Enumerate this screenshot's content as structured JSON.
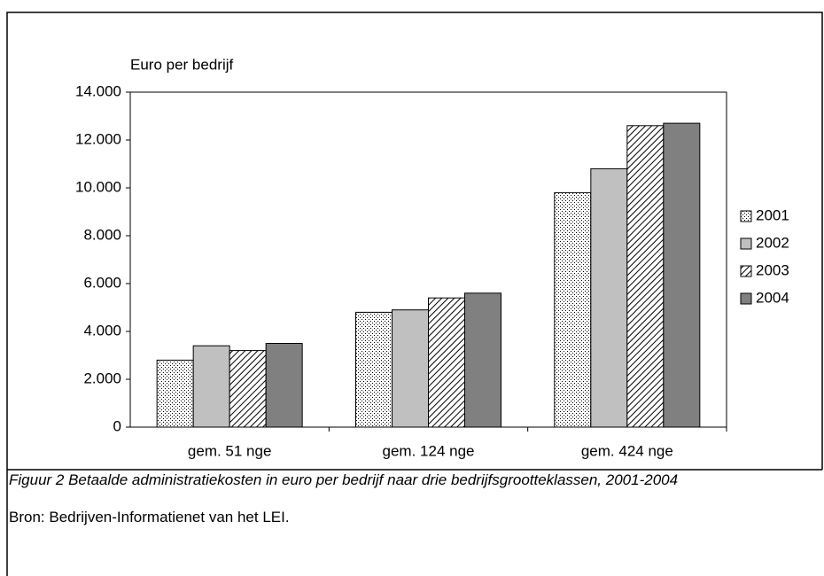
{
  "chart_data": {
    "type": "bar",
    "ylabel": "Euro per bedrijf",
    "categories": [
      "gem. 51 nge",
      "gem. 124 nge",
      "gem. 424 nge"
    ],
    "series": [
      {
        "name": "2001",
        "color": "#ffffff",
        "pattern": "dots",
        "values": [
          2800,
          4800,
          9800
        ]
      },
      {
        "name": "2002",
        "color": "#c0c0c0",
        "pattern": "solid",
        "values": [
          3400,
          4900,
          10800
        ]
      },
      {
        "name": "2003",
        "color": "#ffffff",
        "pattern": "hatch",
        "values": [
          3200,
          5400,
          12600
        ]
      },
      {
        "name": "2004",
        "color": "#808080",
        "pattern": "solid",
        "values": [
          3500,
          5600,
          12700
        ]
      }
    ],
    "ylim": [
      0,
      14000
    ],
    "yticks": [
      0,
      {
        "value": 2000,
        "label": "2.000"
      },
      {
        "value": 4000,
        "label": "4.000"
      },
      {
        "value": 6000,
        "label": "6.000"
      },
      {
        "value": 8000,
        "label": "8.000"
      },
      {
        "value": 10000,
        "label": "10.000"
      },
      {
        "value": 12000,
        "label": "12.000"
      },
      {
        "value": 14000,
        "label": "14.000"
      }
    ],
    "grid": false,
    "legend": "right",
    "caption": "Figuur 2 Betaalde administratiekosten in euro per bedrijf naar drie bedrijfsgrootteklassen, 2001-2004",
    "source": "Bron: Bedrijven-Informatienet van het LEI."
  }
}
